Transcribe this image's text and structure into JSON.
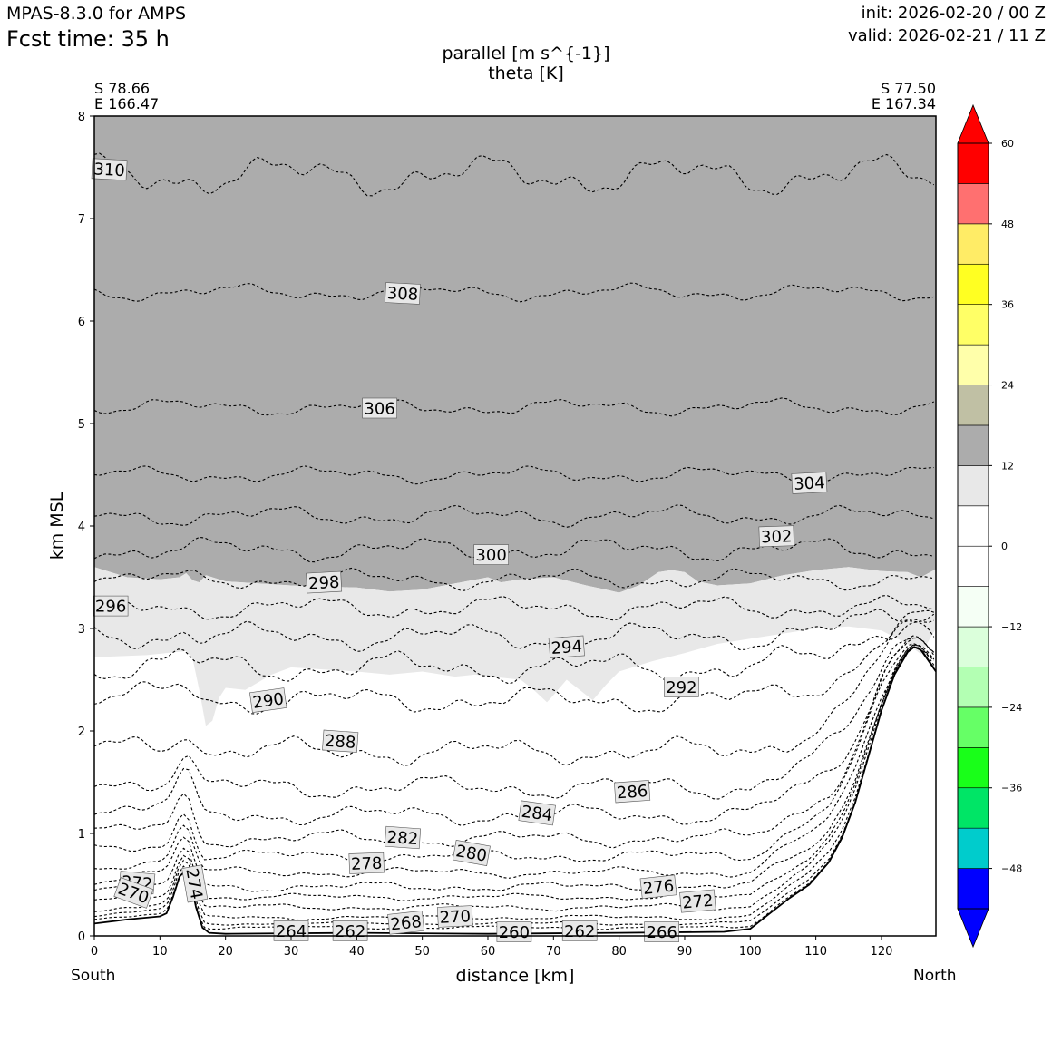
{
  "header": {
    "model": "MPAS-8.3.0 for AMPS",
    "fcst_time": "Fcst time:   35 h",
    "init": "init: 2026-02-20 / 00 Z",
    "valid": "valid: 2026-02-21 / 11 Z",
    "title_line1": "parallel [m s^{-1}]",
    "title_line2": "theta [K]"
  },
  "endpoints": {
    "south_lat": "S 78.66",
    "south_lon": "E 166.47",
    "north_lat": "S 77.50",
    "north_lon": "E 167.34",
    "south_label": "South",
    "north_label": "North"
  },
  "colors": {
    "shade_12_18": "#acacac",
    "shade_6_12": "#e8e8e8",
    "terrain_line": "#000000",
    "contour_line": "#000000"
  },
  "chart_data": {
    "type": "cross-section",
    "xlabel": "distance [km]",
    "ylabel": "km MSL",
    "xlim": [
      0,
      128.3
    ],
    "ylim": [
      0,
      8
    ],
    "xticks": [
      0,
      10,
      20,
      30,
      40,
      50,
      60,
      70,
      80,
      90,
      100,
      110,
      120
    ],
    "yticks": [
      0,
      1,
      2,
      3,
      4,
      5,
      6,
      7,
      8
    ],
    "colorbar": {
      "ticks": [
        "60",
        "48",
        "36",
        "24",
        "12",
        "0",
        "−12",
        "−24",
        "−36",
        "−48"
      ],
      "tick_values": [
        60,
        48,
        36,
        24,
        12,
        0,
        -12,
        -24,
        -36,
        -48
      ],
      "bounds": [
        -54,
        60
      ],
      "extend": "both",
      "colors": [
        "#0000ff",
        "#00cccc",
        "#00e566",
        "#19ff19",
        "#66ff66",
        "#b3ffb3",
        "#dbffdb",
        "#f5fff5",
        "#ffffff",
        "#ffffff",
        "#e8e8e8",
        "#acacac",
        "#c0c0a4",
        "#ffffaa",
        "#ffff66",
        "#ffff22",
        "#ffec66",
        "#ff7070",
        "#ff0000"
      ],
      "under_color": "#0000ff",
      "over_color": "#ff0000"
    },
    "terrain": [
      [
        0,
        0.12
      ],
      [
        5,
        0.16
      ],
      [
        10,
        0.19
      ],
      [
        11,
        0.22
      ],
      [
        12,
        0.38
      ],
      [
        13,
        0.58
      ],
      [
        13.8,
        0.63
      ],
      [
        14.6,
        0.55
      ],
      [
        15.5,
        0.28
      ],
      [
        16.5,
        0.08
      ],
      [
        17.5,
        0.03
      ],
      [
        20,
        0.02
      ],
      [
        40,
        0.03
      ],
      [
        60,
        0.02
      ],
      [
        80,
        0.03
      ],
      [
        96,
        0.04
      ],
      [
        100,
        0.07
      ],
      [
        103,
        0.22
      ],
      [
        106,
        0.37
      ],
      [
        109,
        0.5
      ],
      [
        112,
        0.72
      ],
      [
        114,
        0.96
      ],
      [
        116,
        1.3
      ],
      [
        118,
        1.75
      ],
      [
        120,
        2.2
      ],
      [
        122,
        2.55
      ],
      [
        124,
        2.77
      ],
      [
        125,
        2.82
      ],
      [
        126,
        2.79
      ],
      [
        127,
        2.7
      ],
      [
        128.3,
        2.58
      ]
    ],
    "shade_dark": [
      [
        0,
        3.6
      ],
      [
        5,
        3.5
      ],
      [
        10,
        3.48
      ],
      [
        13,
        3.5
      ],
      [
        14,
        3.54
      ],
      [
        15,
        3.47
      ],
      [
        16,
        3.45
      ],
      [
        17,
        3.52
      ],
      [
        18,
        3.5
      ],
      [
        20,
        3.46
      ],
      [
        30,
        3.42
      ],
      [
        40,
        3.4
      ],
      [
        45,
        3.36
      ],
      [
        50,
        3.38
      ],
      [
        55,
        3.44
      ],
      [
        60,
        3.5
      ],
      [
        62,
        3.45
      ],
      [
        65,
        3.48
      ],
      [
        70,
        3.5
      ],
      [
        75,
        3.42
      ],
      [
        78,
        3.38
      ],
      [
        80,
        3.35
      ],
      [
        83,
        3.42
      ],
      [
        86,
        3.55
      ],
      [
        88,
        3.57
      ],
      [
        90,
        3.55
      ],
      [
        92,
        3.46
      ],
      [
        95,
        3.42
      ],
      [
        100,
        3.44
      ],
      [
        105,
        3.52
      ],
      [
        110,
        3.57
      ],
      [
        115,
        3.6
      ],
      [
        120,
        3.56
      ],
      [
        124,
        3.55
      ],
      [
        126,
        3.5
      ],
      [
        128.3,
        3.58
      ]
    ],
    "shade_light": [
      [
        0,
        2.72
      ],
      [
        8,
        2.74
      ],
      [
        14,
        2.78
      ],
      [
        15,
        2.7
      ],
      [
        16,
        2.4
      ],
      [
        17,
        2.05
      ],
      [
        18,
        2.1
      ],
      [
        19,
        2.32
      ],
      [
        20,
        2.42
      ],
      [
        23,
        2.4
      ],
      [
        27,
        2.55
      ],
      [
        30,
        2.62
      ],
      [
        35,
        2.6
      ],
      [
        40,
        2.58
      ],
      [
        45,
        2.55
      ],
      [
        50,
        2.58
      ],
      [
        55,
        2.53
      ],
      [
        58,
        2.55
      ],
      [
        62,
        2.52
      ],
      [
        65,
        2.5
      ],
      [
        67,
        2.4
      ],
      [
        69,
        2.28
      ],
      [
        70,
        2.35
      ],
      [
        72,
        2.5
      ],
      [
        74,
        2.4
      ],
      [
        76,
        2.3
      ],
      [
        78,
        2.45
      ],
      [
        80,
        2.58
      ],
      [
        85,
        2.68
      ],
      [
        90,
        2.76
      ],
      [
        95,
        2.85
      ],
      [
        100,
        2.9
      ],
      [
        105,
        2.95
      ],
      [
        110,
        3.0
      ],
      [
        115,
        3.02
      ],
      [
        120,
        2.98
      ],
      [
        124,
        2.85
      ],
      [
        126,
        2.75
      ],
      [
        128.3,
        3.0
      ]
    ],
    "theta_contours": [
      {
        "label": "310",
        "base": 7.42,
        "amp": 0.12,
        "seed": 1
      },
      {
        "label": "308",
        "base": 6.28,
        "amp": 0.05,
        "seed": 2
      },
      {
        "label": "306",
        "base": 5.16,
        "amp": 0.05,
        "seed": 3
      },
      {
        "label": "304",
        "base": 4.5,
        "amp": 0.05,
        "seed": 4
      },
      {
        "label": "302",
        "base": 4.1,
        "amp": 0.06,
        "seed": 5
      },
      {
        "label": "300",
        "base": 3.77,
        "amp": 0.07,
        "seed": 6
      },
      {
        "label": "298",
        "base": 3.48,
        "amp": 0.06,
        "seed": 7
      },
      {
        "label": "296",
        "base": 3.2,
        "amp": 0.07,
        "seed": 8
      },
      {
        "label": "294",
        "base": 2.92,
        "amp": 0.08,
        "seed": 9
      },
      {
        "label": "292",
        "base": 2.62,
        "amp": 0.09,
        "seed": 10
      },
      {
        "label": "290",
        "base": 2.3,
        "amp": 0.08,
        "seed": 11
      },
      {
        "label": "288",
        "base": 1.8,
        "amp": 0.08,
        "seed": 12
      },
      {
        "label": "286",
        "base": 1.45,
        "amp": 0.07,
        "seed": 13
      },
      {
        "label": "284",
        "base": 1.18,
        "amp": 0.06,
        "seed": 14
      },
      {
        "label": "282",
        "base": 0.95,
        "amp": 0.05,
        "seed": 15
      },
      {
        "label": "280",
        "base": 0.78,
        "amp": 0.04,
        "seed": 16
      },
      {
        "label": "278",
        "base": 0.62,
        "amp": 0.03,
        "seed": 17
      },
      {
        "label": "276",
        "base": 0.48,
        "amp": 0.03,
        "seed": 18
      },
      {
        "label": "274",
        "base": 0.38,
        "amp": 0.02,
        "seed": 19
      },
      {
        "label": "272",
        "base": 0.28,
        "amp": 0.02,
        "seed": 20
      },
      {
        "label": "270",
        "base": 0.18,
        "amp": 0.015,
        "seed": 21
      },
      {
        "label": "268",
        "base": 0.12,
        "amp": 0.01,
        "seed": 22
      },
      {
        "label": "266",
        "base": 0.08,
        "amp": 0.01,
        "seed": 23
      }
    ],
    "contour_labels": [
      {
        "text": "310",
        "x": 2.3,
        "y": 7.48,
        "rot": 3
      },
      {
        "text": "308",
        "x": 47,
        "y": 6.27,
        "rot": 3
      },
      {
        "text": "306",
        "x": 43.5,
        "y": 5.15,
        "rot": 0
      },
      {
        "text": "304",
        "x": 109,
        "y": 4.42,
        "rot": -3
      },
      {
        "text": "302",
        "x": 104,
        "y": 3.9,
        "rot": -2
      },
      {
        "text": "300",
        "x": 60.5,
        "y": 3.72,
        "rot": 0
      },
      {
        "text": "298",
        "x": 35,
        "y": 3.45,
        "rot": -3
      },
      {
        "text": "296",
        "x": 2.5,
        "y": 3.22,
        "rot": 0
      },
      {
        "text": "294",
        "x": 72,
        "y": 2.82,
        "rot": -4
      },
      {
        "text": "292",
        "x": 89.5,
        "y": 2.43,
        "rot": 0
      },
      {
        "text": "290",
        "x": 26.5,
        "y": 2.3,
        "rot": -8
      },
      {
        "text": "288",
        "x": 37.5,
        "y": 1.9,
        "rot": 4
      },
      {
        "text": "286",
        "x": 82,
        "y": 1.41,
        "rot": -4
      },
      {
        "text": "284",
        "x": 67.5,
        "y": 1.2,
        "rot": 8
      },
      {
        "text": "282",
        "x": 47,
        "y": 0.96,
        "rot": 4
      },
      {
        "text": "280",
        "x": 57.5,
        "y": 0.81,
        "rot": 10
      },
      {
        "text": "278",
        "x": 41.5,
        "y": 0.71,
        "rot": -2
      },
      {
        "text": "276",
        "x": 86,
        "y": 0.48,
        "rot": -6
      },
      {
        "text": "274",
        "x": 15.3,
        "y": 0.51,
        "rot": 80
      },
      {
        "text": "272",
        "x": 6.5,
        "y": 0.52,
        "rot": 5
      },
      {
        "text": "272",
        "x": 92,
        "y": 0.34,
        "rot": -5
      },
      {
        "text": "270",
        "x": 6,
        "y": 0.42,
        "rot": 20
      },
      {
        "text": "270",
        "x": 55,
        "y": 0.19,
        "rot": -3
      },
      {
        "text": "268",
        "x": 47.5,
        "y": 0.13,
        "rot": -6
      },
      {
        "text": "266",
        "x": 86.5,
        "y": 0.04,
        "rot": 0
      },
      {
        "text": "264",
        "x": 30,
        "y": 0.05,
        "rot": 0
      },
      {
        "text": "262",
        "x": 39,
        "y": 0.05,
        "rot": 0
      },
      {
        "text": "262",
        "x": 74,
        "y": 0.05,
        "rot": 0
      },
      {
        "text": "260",
        "x": 64,
        "y": 0.04,
        "rot": 0
      }
    ]
  }
}
